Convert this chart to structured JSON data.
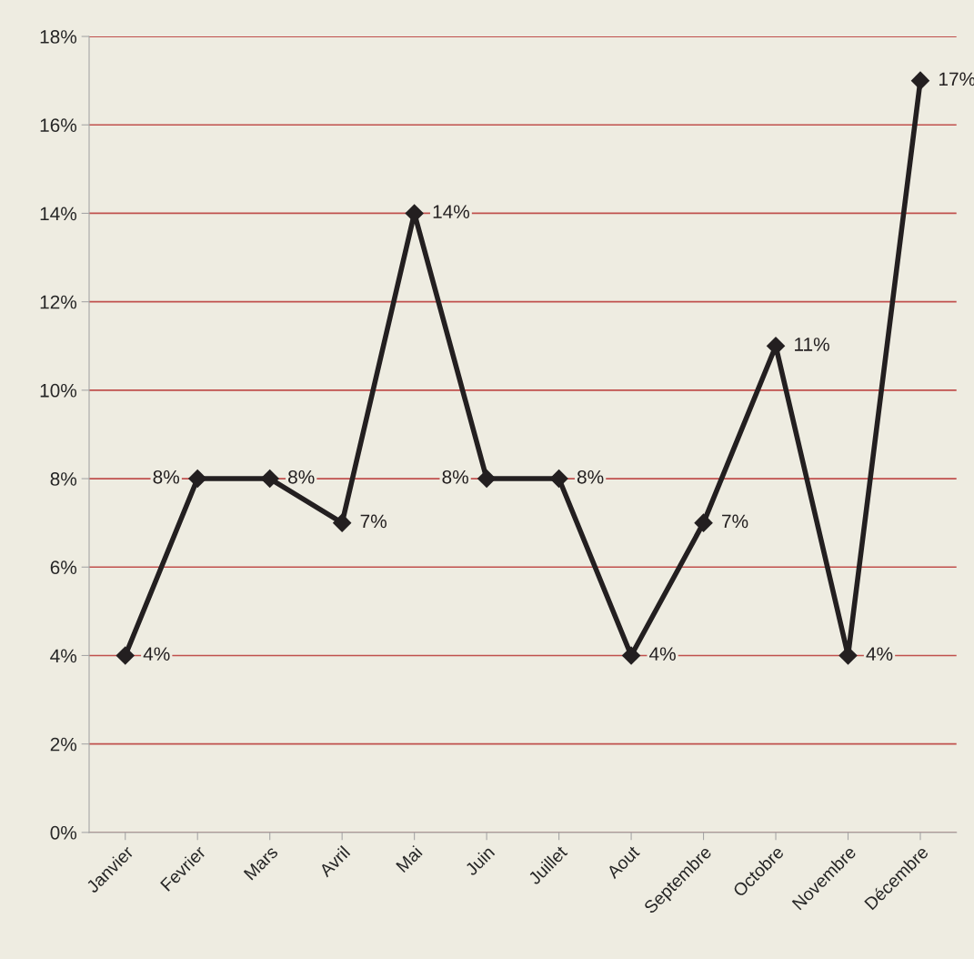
{
  "chart_data": {
    "type": "line",
    "categories": [
      "Janvier",
      "Fevrier",
      "Mars",
      "Avril",
      "Mai",
      "Juin",
      "Juillet",
      "Aout",
      "Septembre",
      "Octobre",
      "Novembre",
      "Décembre"
    ],
    "series": [
      {
        "color": "#231f20",
        "values": [
          4,
          8,
          8,
          7,
          14,
          8,
          8,
          4,
          7,
          11,
          4,
          17
        ],
        "value_labels": [
          "4%",
          "8%",
          "8%",
          "7%",
          "14%",
          "8%",
          "8%",
          "4%",
          "7%",
          "11%",
          "4%",
          "17%"
        ]
      }
    ],
    "ylim": [
      0,
      18
    ],
    "yticks": [
      {
        "value": 0,
        "label": "0%"
      },
      {
        "value": 2,
        "label": "2%"
      },
      {
        "value": 4,
        "label": "4%"
      },
      {
        "value": 6,
        "label": "6%"
      },
      {
        "value": 8,
        "label": "8%"
      },
      {
        "value": 10,
        "label": "10%"
      },
      {
        "value": 12,
        "label": "12%"
      },
      {
        "value": 14,
        "label": "14%"
      },
      {
        "value": 16,
        "label": "16%"
      },
      {
        "value": 18,
        "label": "18%"
      }
    ],
    "grid": "y",
    "legend": false,
    "marker": "diamond",
    "line_style": "solid"
  }
}
